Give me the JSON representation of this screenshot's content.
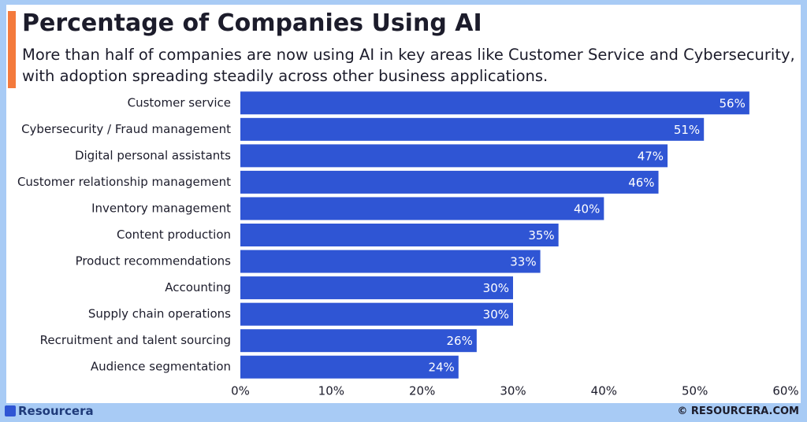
{
  "chart_data": {
    "type": "hbar",
    "title": "Percentage of Companies Using AI",
    "subtitle": "More than half of companies are now using AI in key areas like Customer Service and Cybersecurity, with adoption spreading steadily across other business applications.",
    "categories": [
      "Customer service",
      "Cybersecurity / Fraud management",
      "Digital personal assistants",
      "Customer relationship management",
      "Inventory management",
      "Content production",
      "Product recommendations",
      "Accounting",
      "Supply chain operations",
      "Recruitment and talent sourcing",
      "Audience segmentation"
    ],
    "values": [
      56,
      51,
      47,
      46,
      40,
      35,
      33,
      30,
      30,
      26,
      24
    ],
    "value_labels": [
      "56%",
      "51%",
      "47%",
      "46%",
      "40%",
      "35%",
      "33%",
      "30%",
      "30%",
      "26%",
      "24%"
    ],
    "color": "#2f55d4",
    "xlim": [
      0,
      60
    ],
    "xticks": [
      {
        "value": 0,
        "label": "0%"
      },
      {
        "value": 10,
        "label": "10%"
      },
      {
        "value": 20,
        "label": "20%"
      },
      {
        "value": 30,
        "label": "30%"
      },
      {
        "value": 40,
        "label": "40%"
      },
      {
        "value": 50,
        "label": "50%"
      },
      {
        "value": 60,
        "label": "60%"
      }
    ]
  },
  "footer": {
    "brand": "Resourcera",
    "site": "© RESOURCERA.COM"
  }
}
